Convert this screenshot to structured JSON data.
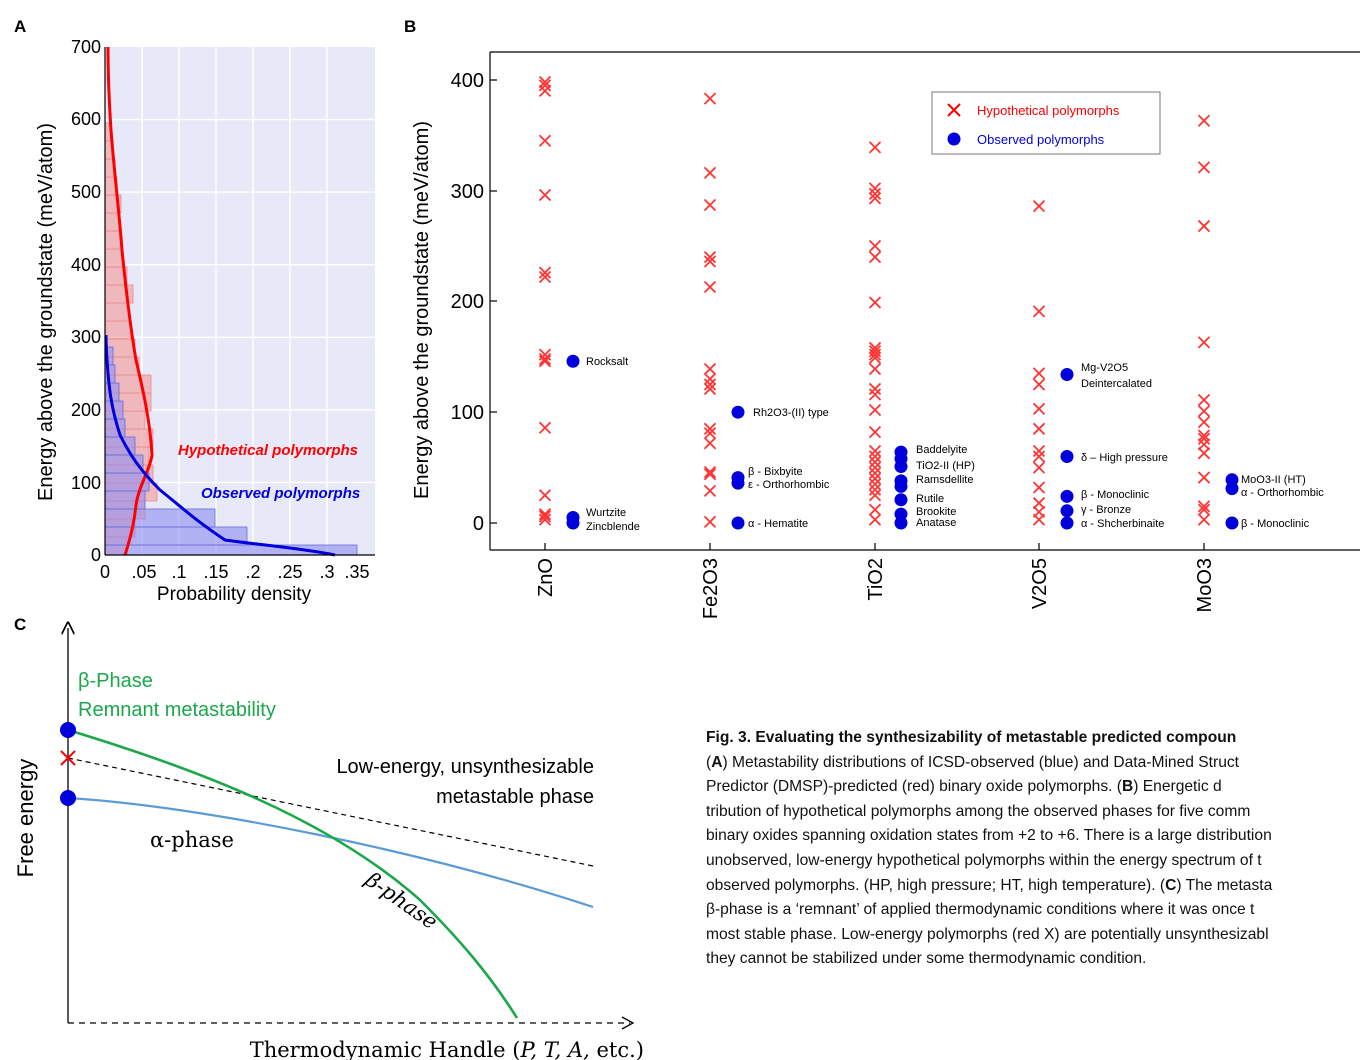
{
  "panels": {
    "a": "A",
    "b": "B",
    "c": "C"
  },
  "panel_a": {
    "ylabel": "Energy above the  groundstate (meV/atom)",
    "xlabel": "Probability density",
    "y_ticks": [
      "0",
      "100",
      "200",
      "300",
      "400",
      "500",
      "600",
      "700"
    ],
    "x_ticks": [
      "0",
      ".05",
      ".1",
      ".15",
      ".2",
      ".25",
      ".3",
      ".35"
    ],
    "hyp_label": "Hypothetical polymorphs",
    "obs_label": "Observed polymorphs",
    "colors": {
      "hyp": "#ff0000",
      "obs": "#0000dd",
      "bg": "#e7e9f8"
    }
  },
  "panel_b": {
    "ylabel": "Energy above the groundstate (meV/atom)",
    "y_ticks": [
      "0",
      "100",
      "200",
      "300",
      "400"
    ],
    "compounds": [
      "ZnO",
      "Fe2O3",
      "TiO2",
      "V2O5",
      "MoO3"
    ],
    "legend": {
      "hyp": "Hypothetical polymorphs",
      "obs": "Observed polymorphs"
    },
    "labels": {
      "zno": [
        "Rocksalt",
        "Wurtzite",
        "Zincblende"
      ],
      "fe2o3": [
        "Rh2O3-(II) type",
        "β  - Bixbyite",
        "ε  - Orthorhombic",
        "α  - Hematite"
      ],
      "tio2": [
        "Baddelyite",
        "TiO2-II (HP)",
        "Ramsdellite",
        "Rutile",
        "Brookite",
        "Anatase"
      ],
      "v2o5": [
        "Mg-V2O5",
        "Deintercalated",
        "δ – High pressure",
        "β  - Monoclinic",
        "γ  - Bronze",
        "α  - Shcherbinaite"
      ],
      "moo3": [
        "MoO3-II (HT)",
        "α  - Orthorhombic",
        "β  - Monoclinic"
      ]
    }
  },
  "panel_c": {
    "beta_phase": "β-Phase",
    "remnant": "Remnant metastability",
    "low_energy_1": "Low-energy, unsynthesizable",
    "low_energy_2": "metastable phase",
    "alpha": "α-phase",
    "beta": "β-phase",
    "ylabel": "Free energy",
    "xlabel_prefix": "Thermodynamic Handle (",
    "xlabel_vars": "P, T, A,",
    "xlabel_suffix": " etc.)",
    "colors": {
      "beta": "#1aa84b",
      "alpha": "#5b9bd5",
      "marker": "#0000dd",
      "x": "#ff0000"
    }
  },
  "caption": {
    "title": "Fig. 3.  Evaluating the synthesizability of metastable predicted compoun",
    "l1a": "(",
    "l1b": "A",
    "l1c": ") Metastability distributions of ICSD-observed (blue) and Data-Mined Struct",
    "l2a": "Predictor (DMSP)-predicted (red) binary oxide polymorphs. (",
    "l2b": "B",
    "l2c": ") Energetic d",
    "l3": "tribution of hypothetical polymorphs among the observed phases for five comm",
    "l4": "binary oxides spanning oxidation states from +2 to +6. There is a large distribution",
    "l5": "unobserved, low-energy hypothetical polymorphs within the energy spectrum of t",
    "l6a": "observed polymorphs. (HP, high pressure; HT, high temperature). (",
    "l6b": "C",
    "l6c": ") The metasta",
    "l7": "β-phase is a ‘remnant’ of applied thermodynamic conditions where it was once t",
    "l8": "most stable phase. Low-energy polymorphs (red X) are potentially unsynthesizabl",
    "l9": "they cannot be stabilized under some thermodynamic condition."
  }
}
